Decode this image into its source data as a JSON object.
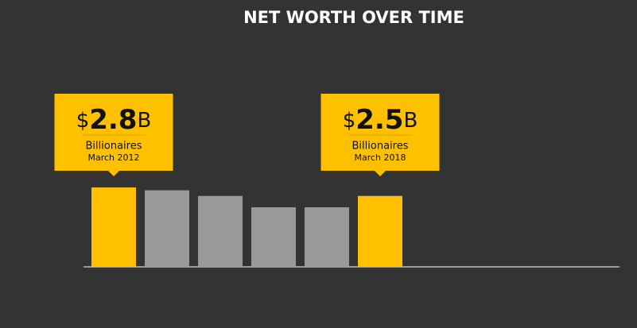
{
  "chart_data": {
    "type": "bar",
    "title": "NET WORTH OVER TIME",
    "categories": [
      "March 2012",
      null,
      null,
      null,
      null,
      "March 2018"
    ],
    "value_prefix": "$",
    "value_suffix": "B",
    "series": [
      {
        "name": "Billionaires",
        "colors": [
          "#ffc000",
          "#999999",
          "#999999",
          "#999999",
          "#999999",
          "#ffc000"
        ],
        "values": [
          2.8,
          2.7,
          2.5,
          2.1,
          2.1,
          2.5
        ]
      }
    ]
  }
}
